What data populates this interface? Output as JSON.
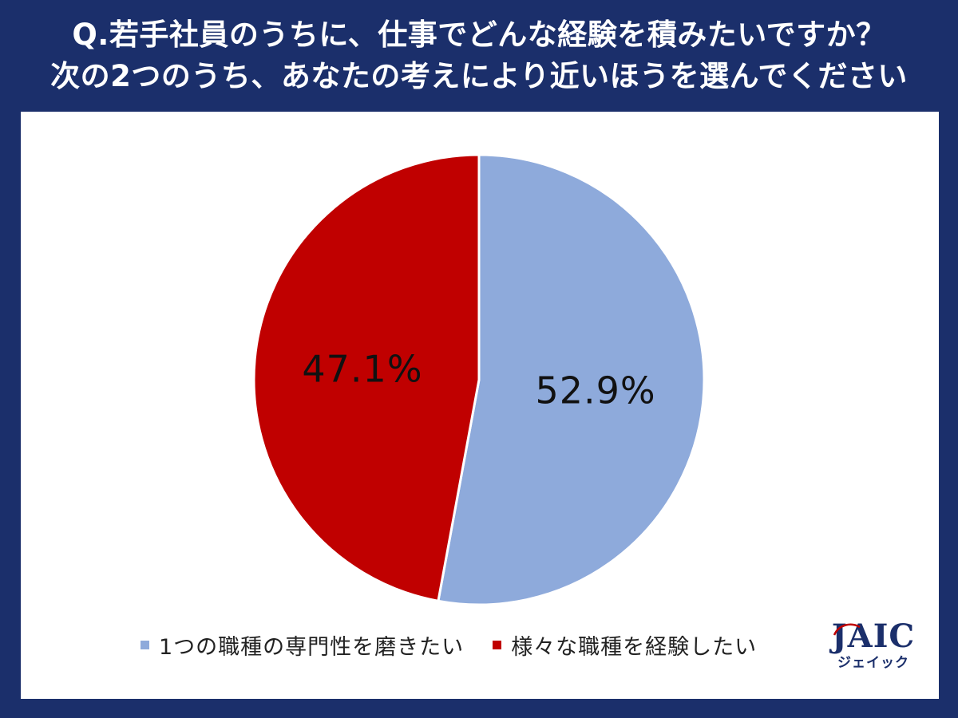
{
  "header": {
    "title_line1": "Q.若手社員のうちに、仕事でどんな経験を積みたいですか？",
    "title_line2": "次の2つのうち、あなたの考えにより近いほうを選んでください"
  },
  "chart_data": {
    "type": "pie",
    "start_angle_deg": 0,
    "direction": "clockwise",
    "slices": [
      {
        "name": "1つの職種の専門性を磨きたい",
        "value": 52.9,
        "label": "52.9%",
        "color": "#8eaadb"
      },
      {
        "name": "様々な職種を経験したい",
        "value": 47.1,
        "label": "47.1%",
        "color": "#c00000"
      }
    ],
    "legend": {
      "placement": "bottom",
      "items": [
        {
          "label": "1つの職種の専門性を磨きたい",
          "color": "#8eaadb"
        },
        {
          "label": "様々な職種を経験したい",
          "color": "#c00000"
        }
      ]
    }
  },
  "logo": {
    "main": "JAIC",
    "sub": "ジェイック"
  },
  "colors": {
    "background": "#1b2f6b",
    "panel": "#ffffff",
    "slice_border": "#ffffff"
  }
}
